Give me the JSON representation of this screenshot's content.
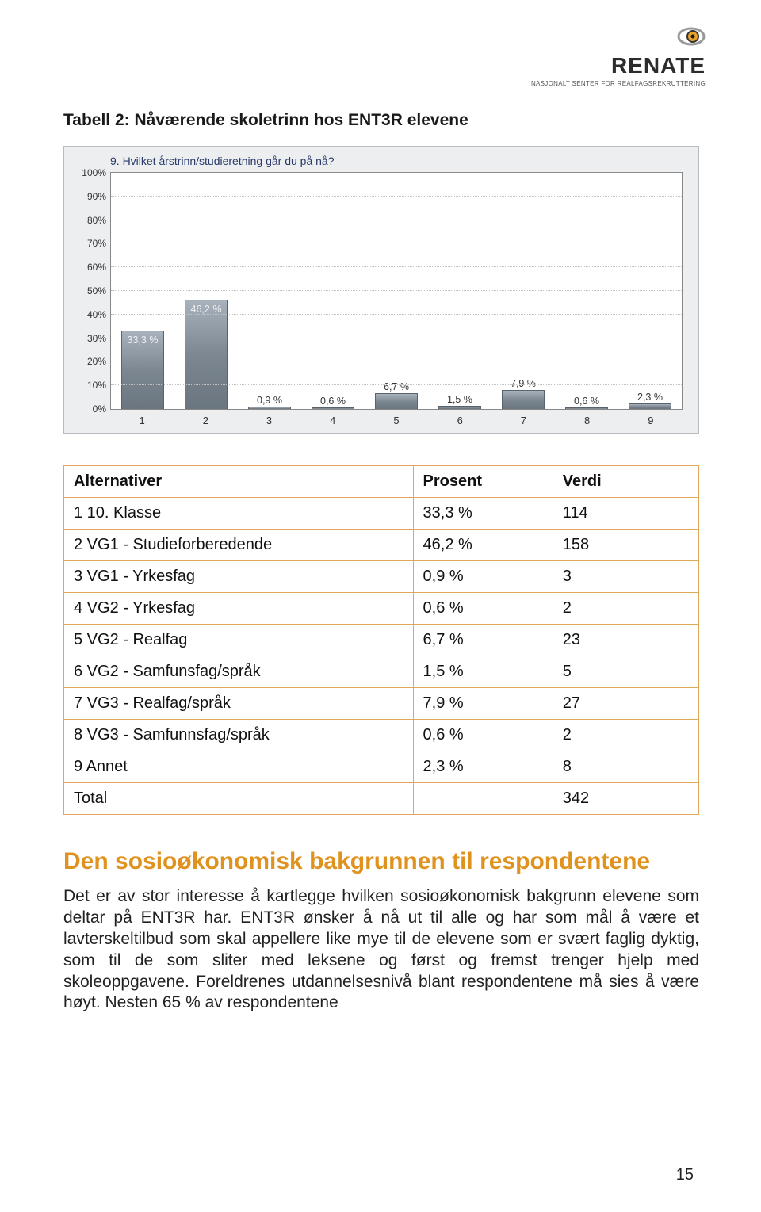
{
  "logo": {
    "brand": "RENATE",
    "subtitle": "NASJONALT SENTER FOR REALFAGSREKRUTTERING"
  },
  "table_title": "Tabell 2: Nåværende skoletrinn hos ENT3R elevene",
  "chart": {
    "type": "bar",
    "question": "9. Hvilket årstrinn/studieretning går du på nå?",
    "categories": [
      "1",
      "2",
      "3",
      "4",
      "5",
      "6",
      "7",
      "8",
      "9"
    ],
    "values": [
      33.3,
      46.2,
      0.9,
      0.6,
      6.7,
      1.5,
      7.9,
      0.6,
      2.3
    ],
    "value_labels": [
      "33,3 %",
      "46,2 %",
      "0,9 %",
      "0,6 %",
      "6,7 %",
      "1,5 %",
      "7,9 %",
      "0,6 %",
      "2,3 %"
    ],
    "ylim": [
      0,
      100
    ],
    "ytick_step": 10,
    "ytick_labels": [
      "0%",
      "10%",
      "20%",
      "30%",
      "40%",
      "50%",
      "60%",
      "70%",
      "80%",
      "90%",
      "100%"
    ],
    "bar_color_top": "#a8b2bc",
    "bar_color_bottom": "#6a7580",
    "bar_border": "#5a636c",
    "grid_color": "#c2c2c2",
    "plot_bg": "#ffffff",
    "box_bg": "#eceeef",
    "q_color": "#2a3a6a",
    "label_fontsize": 12
  },
  "data_table": {
    "headers": [
      "Alternativer",
      "Prosent",
      "Verdi"
    ],
    "rows": [
      [
        "1 10. Klasse",
        "33,3 %",
        "114"
      ],
      [
        "2 VG1 - Studieforberedende",
        "46,2 %",
        "158"
      ],
      [
        "3 VG1 - Yrkesfag",
        "0,9 %",
        "3"
      ],
      [
        "4 VG2 - Yrkesfag",
        "0,6 %",
        "2"
      ],
      [
        "5 VG2 - Realfag",
        "6,7 %",
        "23"
      ],
      [
        "6 VG2 - Samfunsfag/språk",
        "1,5 %",
        "5"
      ],
      [
        "7 VG3 - Realfag/språk",
        "7,9 %",
        "27"
      ],
      [
        "8 VG3 - Samfunnsfag/språk",
        "0,6 %",
        "2"
      ],
      [
        "9 Annet",
        "2,3 %",
        "8"
      ],
      [
        "Total",
        "",
        "342"
      ]
    ],
    "border_color": "#e1a85a"
  },
  "section": {
    "heading": "Den sosioøkonomisk bakgrunnen til respondentene",
    "body": "Det er av stor interesse å kartlegge hvilken sosioøkonomisk bakgrunn elevene som deltar på ENT3R har. ENT3R ønsker å nå ut til alle og har som mål å være et lavterskeltilbud som skal appellere like mye til de elevene som er svært faglig dyktig, som til de som sliter med leksene og først og fremst trenger hjelp med skoleoppgavene. Foreldrenes utdannelsesnivå blant respondentene må sies å være høyt. Nesten 65 % av respondentene"
  },
  "page_number": "15",
  "heading_color": "#e0921e"
}
